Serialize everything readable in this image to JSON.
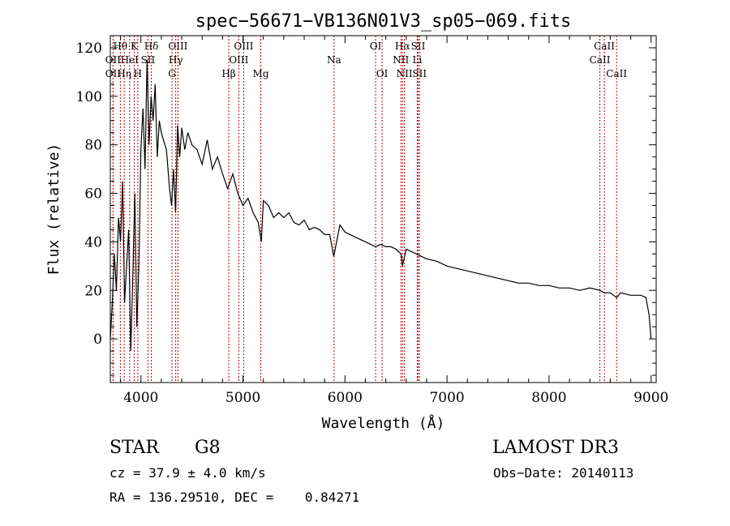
{
  "chart_data": {
    "type": "line",
    "title": "spec−56671−VB136N01V3_sp05−069.fits",
    "xlabel": "Wavelength (Å)",
    "ylabel": "Flux (relative)",
    "xlim": [
      3700,
      9050
    ],
    "ylim": [
      -18,
      125
    ],
    "xticks": [
      4000,
      5000,
      6000,
      7000,
      8000,
      9000
    ],
    "yticks": [
      0,
      20,
      40,
      60,
      80,
      100,
      120
    ],
    "grid": false,
    "series": [
      {
        "name": "flux",
        "x": [
          3700,
          3720,
          3740,
          3760,
          3780,
          3800,
          3820,
          3840,
          3860,
          3880,
          3900,
          3920,
          3940,
          3960,
          3980,
          4000,
          4020,
          4040,
          4060,
          4080,
          4100,
          4120,
          4140,
          4160,
          4180,
          4200,
          4220,
          4250,
          4280,
          4300,
          4320,
          4340,
          4360,
          4380,
          4400,
          4430,
          4460,
          4500,
          4550,
          4600,
          4650,
          4700,
          4750,
          4800,
          4850,
          4900,
          4950,
          5000,
          5050,
          5100,
          5150,
          5180,
          5200,
          5250,
          5300,
          5350,
          5400,
          5450,
          5500,
          5550,
          5600,
          5650,
          5700,
          5750,
          5800,
          5850,
          5890,
          5950,
          6000,
          6050,
          6100,
          6150,
          6200,
          6250,
          6300,
          6350,
          6400,
          6450,
          6500,
          6550,
          6563,
          6600,
          6650,
          6700,
          6750,
          6800,
          6900,
          7000,
          7100,
          7200,
          7300,
          7400,
          7500,
          7600,
          7700,
          7800,
          7900,
          8000,
          8100,
          8200,
          8300,
          8400,
          8500,
          8542,
          8600,
          8662,
          8700,
          8800,
          8850,
          8900,
          8950,
          8980,
          9000
        ],
        "y": [
          0,
          15,
          35,
          20,
          50,
          40,
          65,
          15,
          30,
          45,
          -5,
          25,
          60,
          5,
          30,
          78,
          95,
          70,
          115,
          80,
          100,
          90,
          105,
          75,
          90,
          85,
          82,
          78,
          62,
          55,
          70,
          52,
          88,
          75,
          87,
          78,
          85,
          80,
          78,
          72,
          82,
          70,
          75,
          68,
          62,
          68,
          60,
          55,
          58,
          52,
          48,
          40,
          57,
          55,
          50,
          52,
          50,
          52,
          48,
          47,
          49,
          45,
          46,
          45,
          43,
          43,
          34,
          47,
          44,
          43,
          42,
          41,
          40,
          39,
          38,
          39,
          38,
          38,
          37,
          35,
          30,
          37,
          36,
          35,
          34,
          33,
          32,
          30,
          29,
          28,
          27,
          26,
          25,
          24,
          23,
          23,
          22,
          22,
          21,
          21,
          20,
          21,
          20,
          19,
          19,
          17,
          19,
          18,
          18,
          18,
          17,
          10,
          0
        ]
      }
    ],
    "lines_top": [
      {
        "label": "Hθ",
        "wave": 3798,
        "row": 1
      },
      {
        "label": "OII",
        "wave": 3727,
        "row": 2
      },
      {
        "label": "OII",
        "wave": 3727,
        "row": 3
      },
      {
        "label": "Hη",
        "wave": 3836,
        "row": 3
      },
      {
        "label": "HeI",
        "wave": 3889,
        "row": 2
      },
      {
        "label": "K",
        "wave": 3934,
        "row": 1
      },
      {
        "label": "H",
        "wave": 3969,
        "row": 3
      },
      {
        "label": "Hδ",
        "wave": 4102,
        "row": 1
      },
      {
        "label": "SII",
        "wave": 4069,
        "row": 2
      },
      {
        "label": "OIII",
        "wave": 4363,
        "row": 1
      },
      {
        "label": "Hγ",
        "wave": 4341,
        "row": 2
      },
      {
        "label": "G",
        "wave": 4305,
        "row": 3
      },
      {
        "label": "Hβ",
        "wave": 4861,
        "row": 3
      },
      {
        "label": "OIII",
        "wave": 4959,
        "row": 2
      },
      {
        "label": "OIII",
        "wave": 5007,
        "row": 1
      },
      {
        "label": "Mg",
        "wave": 5175,
        "row": 3
      },
      {
        "label": "Na",
        "wave": 5893,
        "row": 2
      },
      {
        "label": "OI",
        "wave": 6300,
        "row": 1
      },
      {
        "label": "OI",
        "wave": 6364,
        "row": 3
      },
      {
        "label": "Hα",
        "wave": 6563,
        "row": 1
      },
      {
        "label": "NII",
        "wave": 6548,
        "row": 2
      },
      {
        "label": "NII",
        "wave": 6583,
        "row": 3
      },
      {
        "label": "SII",
        "wave": 6717,
        "row": 1
      },
      {
        "label": "Li",
        "wave": 6708,
        "row": 2
      },
      {
        "label": "SII",
        "wave": 6731,
        "row": 3
      },
      {
        "label": "CaII",
        "wave": 8542,
        "row": 1
      },
      {
        "label": "CaII",
        "wave": 8498,
        "row": 2
      },
      {
        "label": "CaII",
        "wave": 8662,
        "row": 3
      }
    ]
  },
  "info": {
    "class_label": "STAR",
    "subclass": "G8",
    "survey": "LAMOST DR3",
    "cz_line": "cz = 37.9 ± 4.0 km/s",
    "obs_date": "Obs−Date: 20140113",
    "coords_line": "RA = 136.29510, DEC =    0.84271"
  }
}
